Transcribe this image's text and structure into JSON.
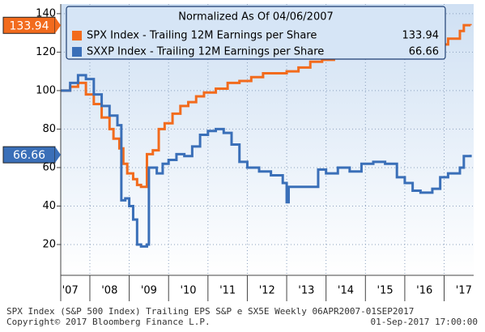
{
  "chart_data": {
    "type": "line",
    "title": "Normalized As Of 04/06/2007",
    "footer": [
      "SPX Index (S&P 500 Index) Trailing EPS S&P e SX5E  Weekly 06APR2007-01SEP2017",
      "Copyright© 2017 Bloomberg Finance L.P.",
      "01-Sep-2017 17:00:00"
    ],
    "series": [
      {
        "name": "SPX Index - Trailing 12M Earnings per Share",
        "color": "#f26b1d",
        "x": [
          2007.26,
          2007.5,
          2007.7,
          2007.9,
          2008.1,
          2008.3,
          2008.5,
          2008.6,
          2008.75,
          2008.85,
          2008.95,
          2009.1,
          2009.2,
          2009.3,
          2009.4,
          2009.45,
          2009.6,
          2009.75,
          2009.9,
          2010.1,
          2010.3,
          2010.5,
          2010.7,
          2010.9,
          2011.2,
          2011.5,
          2011.8,
          2012.1,
          2012.4,
          2012.7,
          2013.0,
          2013.3,
          2013.6,
          2013.9,
          2014.2,
          2014.5,
          2014.8,
          2015.0,
          2015.2,
          2015.5,
          2015.8,
          2016.0,
          2016.3,
          2016.6,
          2016.9,
          2017.1,
          2017.4,
          2017.5,
          2017.67
        ],
        "values": [
          100,
          102,
          104,
          98,
          93,
          86,
          80,
          75,
          70,
          62,
          57,
          54,
          51,
          50,
          50,
          67,
          69,
          80,
          83,
          88,
          92,
          94,
          97,
          99,
          101,
          104,
          105,
          107,
          109,
          109,
          110,
          112,
          115,
          116,
          119,
          121,
          125,
          128,
          129,
          130,
          128,
          125,
          123,
          122,
          124,
          127,
          131,
          134,
          133.94
        ]
      },
      {
        "name": "SXXP Index - Trailing 12M Earnings per Share",
        "color": "#3a6fb8",
        "x": [
          2007.26,
          2007.5,
          2007.7,
          2007.9,
          2008.1,
          2008.3,
          2008.5,
          2008.7,
          2008.8,
          2008.9,
          2009.0,
          2009.1,
          2009.2,
          2009.3,
          2009.45,
          2009.5,
          2009.7,
          2009.85,
          2010.0,
          2010.2,
          2010.4,
          2010.6,
          2010.8,
          2011.0,
          2011.2,
          2011.4,
          2011.6,
          2011.8,
          2012.0,
          2012.3,
          2012.6,
          2012.9,
          2013.0,
          2013.05,
          2013.5,
          2013.8,
          2014.0,
          2014.3,
          2014.6,
          2014.9,
          2015.2,
          2015.5,
          2015.8,
          2016.0,
          2016.2,
          2016.4,
          2016.7,
          2016.9,
          2017.1,
          2017.4,
          2017.5,
          2017.67
        ],
        "values": [
          100,
          104,
          108,
          106,
          98,
          92,
          87,
          82,
          43,
          44,
          40,
          33,
          20,
          19,
          20,
          60,
          57,
          62,
          64,
          67,
          66,
          71,
          77,
          79,
          80,
          78,
          72,
          63,
          60,
          58,
          56,
          52,
          42,
          50,
          50,
          59,
          57,
          60,
          58,
          62,
          63,
          62,
          55,
          52,
          48,
          47,
          49,
          55,
          57,
          60,
          66,
          66.66
        ]
      }
    ],
    "xlim": [
      2007.26,
      2017.75
    ],
    "xticks": [
      {
        "value": 2007.5,
        "label": "'07"
      },
      {
        "value": 2008.5,
        "label": "'08"
      },
      {
        "value": 2009.5,
        "label": "'09"
      },
      {
        "value": 2010.5,
        "label": "'10"
      },
      {
        "value": 2011.5,
        "label": "'11"
      },
      {
        "value": 2012.5,
        "label": "'12"
      },
      {
        "value": 2013.5,
        "label": "'13"
      },
      {
        "value": 2014.5,
        "label": "'14"
      },
      {
        "value": 2015.5,
        "label": "'15"
      },
      {
        "value": 2016.5,
        "label": "'16"
      },
      {
        "value": 2017.5,
        "label": "'17"
      }
    ],
    "ylim": [
      4,
      145
    ],
    "yticks": [
      20,
      40,
      60,
      80,
      100,
      120,
      140
    ],
    "grid": true
  }
}
